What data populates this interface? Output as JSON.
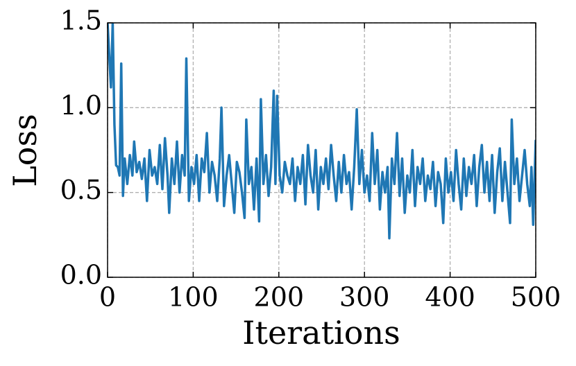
{
  "chart_data": {
    "type": "line",
    "xlabel": "Iterations",
    "ylabel": "Loss",
    "x": [
      0,
      2,
      4,
      6,
      8,
      10,
      12,
      14,
      16,
      18,
      20,
      23,
      26,
      29,
      31,
      34,
      37,
      40,
      43,
      46,
      49,
      52,
      55,
      58,
      61,
      64,
      67,
      70,
      72,
      75,
      78,
      81,
      84,
      87,
      90,
      92,
      95,
      98,
      101,
      104,
      107,
      110,
      113,
      116,
      119,
      122,
      125,
      128,
      131,
      133,
      136,
      139,
      142,
      145,
      148,
      151,
      154,
      157,
      160,
      162,
      165,
      168,
      171,
      174,
      177,
      179,
      182,
      185,
      188,
      191,
      194,
      196,
      198,
      201,
      204,
      207,
      210,
      213,
      216,
      219,
      222,
      225,
      228,
      231,
      234,
      237,
      240,
      243,
      246,
      249,
      252,
      255,
      258,
      261,
      264,
      267,
      270,
      273,
      276,
      279,
      282,
      285,
      288,
      291,
      294,
      297,
      300,
      303,
      306,
      309,
      312,
      315,
      318,
      321,
      324,
      327,
      329,
      332,
      335,
      338,
      341,
      344,
      347,
      350,
      353,
      356,
      359,
      362,
      365,
      368,
      371,
      374,
      377,
      380,
      383,
      386,
      389,
      392,
      395,
      398,
      401,
      404,
      407,
      410,
      413,
      416,
      419,
      422,
      425,
      428,
      431,
      434,
      437,
      440,
      443,
      446,
      449,
      452,
      455,
      458,
      461,
      464,
      467,
      470,
      472,
      475,
      478,
      481,
      484,
      487,
      490,
      493,
      495,
      497,
      499,
      500
    ],
    "series": [
      {
        "name": "Loss",
        "color": "#1f77b4",
        "values": [
          1.5,
          1.3,
          1.12,
          1.5,
          0.9,
          0.66,
          0.65,
          0.6,
          1.26,
          0.48,
          0.7,
          0.55,
          0.72,
          0.6,
          0.8,
          0.62,
          0.68,
          0.58,
          0.7,
          0.45,
          0.75,
          0.6,
          0.65,
          0.55,
          0.78,
          0.52,
          0.82,
          0.6,
          0.38,
          0.7,
          0.55,
          0.8,
          0.5,
          0.72,
          0.6,
          1.29,
          0.45,
          0.65,
          0.55,
          0.72,
          0.45,
          0.7,
          0.62,
          0.85,
          0.5,
          0.68,
          0.6,
          0.45,
          0.7,
          1.0,
          0.42,
          0.6,
          0.72,
          0.55,
          0.38,
          0.68,
          0.62,
          0.5,
          0.35,
          0.93,
          0.55,
          0.65,
          0.4,
          0.7,
          0.33,
          1.05,
          0.55,
          0.72,
          0.48,
          0.65,
          1.1,
          0.55,
          1.07,
          0.6,
          0.5,
          0.68,
          0.6,
          0.55,
          0.7,
          0.45,
          0.65,
          0.55,
          0.72,
          0.43,
          0.78,
          0.6,
          0.5,
          0.75,
          0.4,
          0.65,
          0.55,
          0.7,
          0.52,
          0.78,
          0.6,
          0.45,
          0.68,
          0.5,
          0.72,
          0.55,
          0.62,
          0.4,
          0.65,
          0.99,
          0.55,
          0.75,
          0.5,
          0.6,
          0.45,
          0.85,
          0.55,
          0.75,
          0.4,
          0.62,
          0.5,
          0.65,
          0.23,
          0.7,
          0.55,
          0.85,
          0.48,
          0.7,
          0.38,
          0.6,
          0.5,
          0.75,
          0.42,
          0.65,
          0.55,
          0.7,
          0.45,
          0.6,
          0.52,
          0.68,
          0.42,
          0.62,
          0.55,
          0.32,
          0.7,
          0.5,
          0.62,
          0.45,
          0.75,
          0.55,
          0.4,
          0.7,
          0.48,
          0.65,
          0.55,
          0.72,
          0.42,
          0.65,
          0.78,
          0.5,
          0.68,
          0.45,
          0.72,
          0.38,
          0.62,
          0.76,
          0.45,
          0.68,
          0.5,
          0.32,
          0.93,
          0.55,
          0.7,
          0.45,
          0.6,
          0.75,
          0.55,
          0.42,
          0.65,
          0.31,
          0.65,
          0.81
        ]
      }
    ],
    "xlim": [
      0,
      500
    ],
    "ylim": [
      0,
      1.5
    ],
    "xticks": [
      0,
      100,
      200,
      300,
      400,
      500
    ],
    "yticks": [
      {
        "value": 0,
        "label": "0.0"
      },
      0.5,
      {
        "value": 1,
        "label": "1.0"
      },
      1.5
    ],
    "grid": true
  }
}
